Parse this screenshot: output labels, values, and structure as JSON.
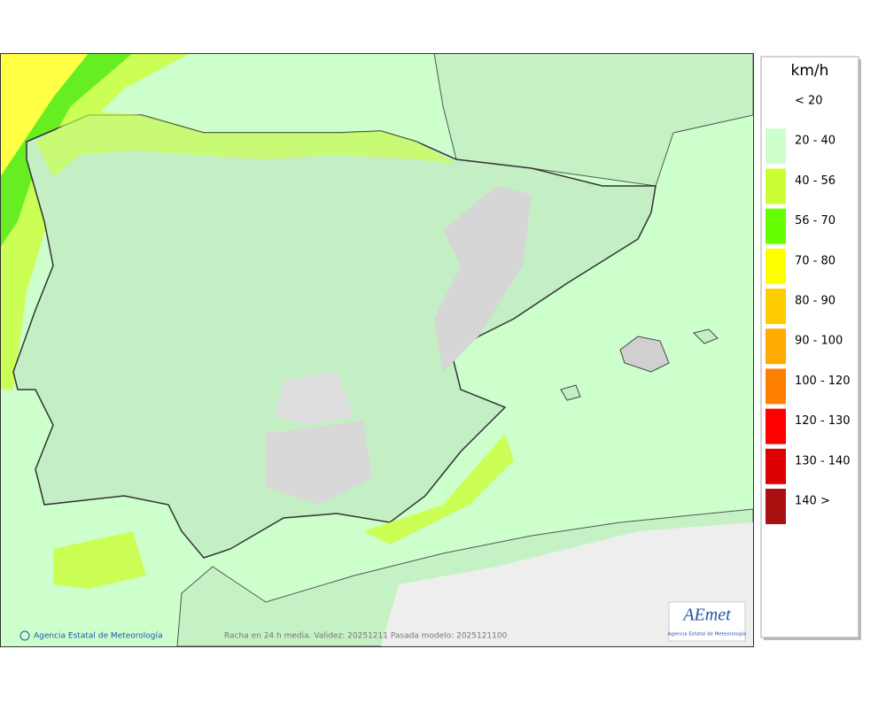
{
  "legend": {
    "title": "km/h",
    "items": [
      {
        "label": "< 20",
        "color": "#ffffff"
      },
      {
        "label": "20 - 40",
        "color": "#ccffcc"
      },
      {
        "label": "40 - 56",
        "color": "#ccff33"
      },
      {
        "label": "56 - 70",
        "color": "#66ff00"
      },
      {
        "label": "70 - 80",
        "color": "#ffff00"
      },
      {
        "label": "80 - 90",
        "color": "#ffcc00"
      },
      {
        "label": "90 - 100",
        "color": "#ffaa00"
      },
      {
        "label": "100 - 120",
        "color": "#ff8000"
      },
      {
        "label": "120 - 130",
        "color": "#ff0000"
      },
      {
        "label": "130 - 140",
        "color": "#dd0000"
      },
      {
        "label": "140 >",
        "color": "#aa1111"
      }
    ]
  },
  "footer": {
    "credit": "Agencia Estatal de Meteorología",
    "caption": "Racha en 24 h media. Validez: 20251211 Pasada modelo: 2025121100"
  },
  "logo": {
    "text": "AEmet",
    "subtitle": "Agencia Estatal de Meteorología"
  }
}
